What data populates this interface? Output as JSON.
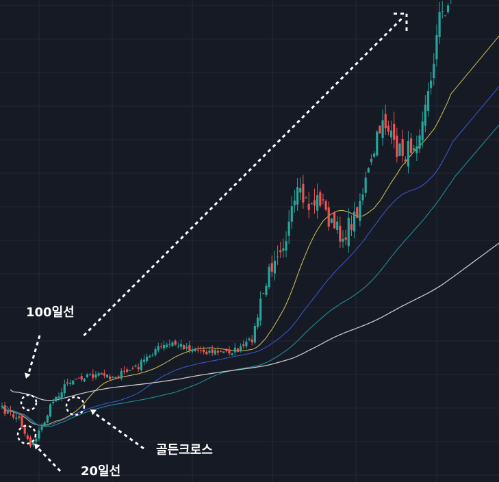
{
  "chart_data": {
    "type": "candlestick",
    "title": "",
    "xlabel": "",
    "ylabel": "",
    "grid": true,
    "background": "#161a25",
    "colors": {
      "up": "#26a69a",
      "down": "#ef5350",
      "ma20": "#c8b850",
      "ma40": "#3a56c8",
      "ma60": "#1f8f98",
      "ma100": "#c8c8c8",
      "annotation": "#ffffff"
    },
    "moving_averages": [
      {
        "name": "20일선",
        "period": 20
      },
      {
        "name": "",
        "period": 40
      },
      {
        "name": "",
        "period": 60
      },
      {
        "name": "100일선",
        "period": 100
      }
    ],
    "annotations": [
      {
        "text": "100일선",
        "role": "label-100ma"
      },
      {
        "text": "골든크로스",
        "role": "label-golden-cross"
      },
      {
        "text": "20일선",
        "role": "label-20ma"
      }
    ],
    "trend_arrow": {
      "from_index": 23,
      "to_index": 118
    }
  }
}
